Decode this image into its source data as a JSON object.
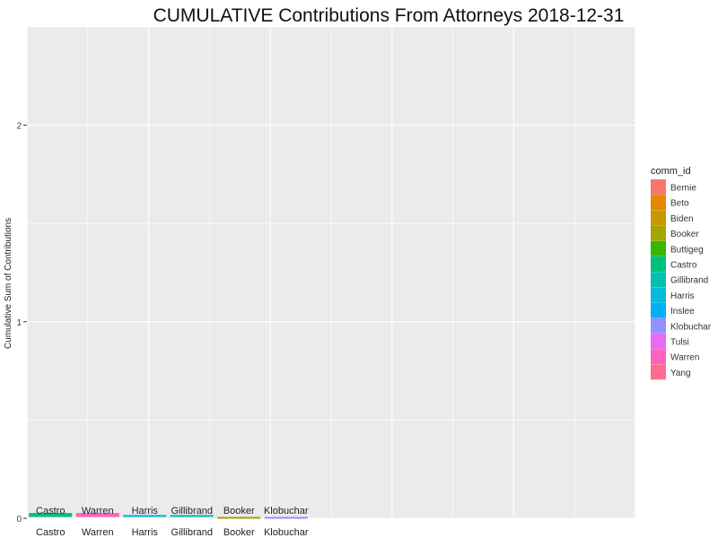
{
  "chart_data": {
    "type": "bar",
    "title": "CUMULATIVE Contributions From  Attorneys  2018-12-31",
    "xlabel": "",
    "ylabel": "Cumulative Sum of Contributions",
    "ylim": [
      0,
      2.5
    ],
    "yticks": [
      0,
      1,
      2
    ],
    "grid": true,
    "legend_title": "comm_id",
    "legend_position": "right",
    "legend": [
      {
        "name": "Bernie",
        "color": "#F8766D"
      },
      {
        "name": "Beto",
        "color": "#E58700"
      },
      {
        "name": "Biden",
        "color": "#C99800"
      },
      {
        "name": "Booker",
        "color": "#A3A500"
      },
      {
        "name": "Buttigeg",
        "color": "#39B600"
      },
      {
        "name": "Castro",
        "color": "#00BF7D"
      },
      {
        "name": "Gillibrand",
        "color": "#00C0AF"
      },
      {
        "name": "Harris",
        "color": "#00BCD8"
      },
      {
        "name": "Inslee",
        "color": "#00B0F6"
      },
      {
        "name": "Klobuchar",
        "color": "#9590FF"
      },
      {
        "name": "Tulsi",
        "color": "#E76BF3"
      },
      {
        "name": "Warren",
        "color": "#FF62BC"
      },
      {
        "name": "Yang",
        "color": "#FF6C91"
      }
    ],
    "categories": [
      "Castro",
      "Warren",
      "Harris",
      "Gillibrand",
      "Booker",
      "Klobuchar"
    ],
    "values": [
      0.02,
      0.02,
      0.01,
      0.01,
      0,
      0
    ],
    "bar_colors": [
      "#00BF7D",
      "#FF62BC",
      "#00BCD8",
      "#00C0AF",
      "#A3A500",
      "#9590FF"
    ]
  }
}
